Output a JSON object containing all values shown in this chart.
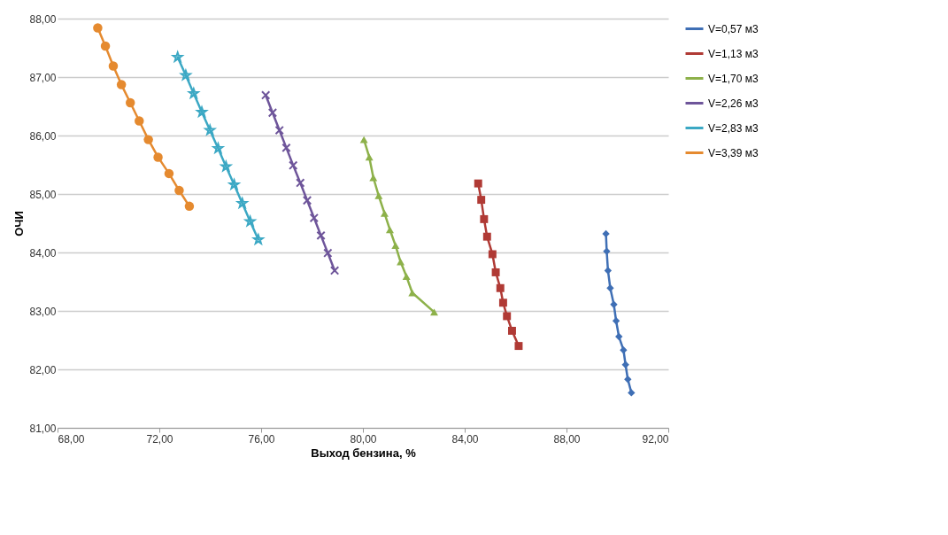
{
  "chart_data": {
    "type": "line",
    "xlabel": "Выход бензина, %",
    "ylabel": "ОЧИ",
    "xlim": [
      68,
      92
    ],
    "xticks": [
      {
        "value": 68,
        "label": "68,00"
      },
      {
        "value": 72,
        "label": "72,00"
      },
      {
        "value": 76,
        "label": "76,00"
      },
      {
        "value": 80,
        "label": "80,00"
      },
      {
        "value": 84,
        "label": "84,00"
      },
      {
        "value": 88,
        "label": "88,00"
      },
      {
        "value": 92,
        "label": "92,00"
      }
    ],
    "ylim": [
      81,
      88
    ],
    "yticks": [
      {
        "value": 81,
        "label": "81,00"
      },
      {
        "value": 82,
        "label": "82,00"
      },
      {
        "value": 83,
        "label": "83,00"
      },
      {
        "value": 84,
        "label": "84,00"
      },
      {
        "value": 85,
        "label": "85,00"
      },
      {
        "value": 86,
        "label": "86,00"
      },
      {
        "value": 87,
        "label": "87,00"
      },
      {
        "value": 88,
        "label": "88,00"
      }
    ],
    "grid": "y",
    "legend": "right",
    "line_style": "solid",
    "series": [
      {
        "name": "V=0,57 м3",
        "color": "#3f6fb5",
        "marker": "diamond",
        "x": [
          89.55,
          89.58,
          89.63,
          89.72,
          89.86,
          89.95,
          90.06,
          90.24,
          90.32,
          90.41,
          90.55
        ],
        "values": [
          84.32,
          84.02,
          83.69,
          83.39,
          83.11,
          82.83,
          82.56,
          82.33,
          82.08,
          81.83,
          81.6
        ]
      },
      {
        "name": "V=1,13 м3",
        "color": "#b03a35",
        "marker": "square",
        "x": [
          84.53,
          84.65,
          84.76,
          84.88,
          85.09,
          85.22,
          85.4,
          85.51,
          85.66,
          85.86,
          86.12
        ],
        "values": [
          85.18,
          84.9,
          84.57,
          84.27,
          83.97,
          83.66,
          83.39,
          83.14,
          82.91,
          82.66,
          82.4
        ]
      },
      {
        "name": "V=1,70 м3",
        "color": "#8db14a",
        "marker": "triangle",
        "x": [
          80.04,
          80.25,
          80.41,
          80.62,
          80.85,
          81.06,
          81.28,
          81.48,
          81.71,
          81.94,
          82.8
        ],
        "values": [
          85.93,
          85.63,
          85.28,
          84.97,
          84.67,
          84.39,
          84.12,
          83.84,
          83.59,
          83.31,
          82.98
        ]
      },
      {
        "name": "V=2,26 м3",
        "color": "#6e559a",
        "marker": "cross",
        "x": [
          76.18,
          76.45,
          76.72,
          76.99,
          77.26,
          77.54,
          77.81,
          78.08,
          78.35,
          78.62,
          78.89
        ],
        "values": [
          86.69,
          86.39,
          86.09,
          85.79,
          85.49,
          85.19,
          84.89,
          84.59,
          84.29,
          83.99,
          83.69
        ]
      },
      {
        "name": "V=2,83 м3",
        "color": "#3ba8c4",
        "marker": "star",
        "x": [
          72.72,
          73.04,
          73.35,
          73.67,
          73.99,
          74.31,
          74.62,
          74.94,
          75.26,
          75.57,
          75.89
        ],
        "values": [
          87.34,
          87.03,
          86.72,
          86.4,
          86.09,
          85.78,
          85.47,
          85.16,
          84.84,
          84.53,
          84.22
        ]
      },
      {
        "name": "V=3,39 м3",
        "color": "#e58a2f",
        "marker": "circle",
        "x": [
          69.58,
          69.88,
          70.19,
          70.51,
          70.86,
          71.21,
          71.57,
          71.95,
          72.38,
          72.78,
          73.18
        ],
        "values": [
          87.84,
          87.53,
          87.19,
          86.87,
          86.56,
          86.25,
          85.93,
          85.63,
          85.35,
          85.06,
          84.79
        ]
      }
    ]
  }
}
